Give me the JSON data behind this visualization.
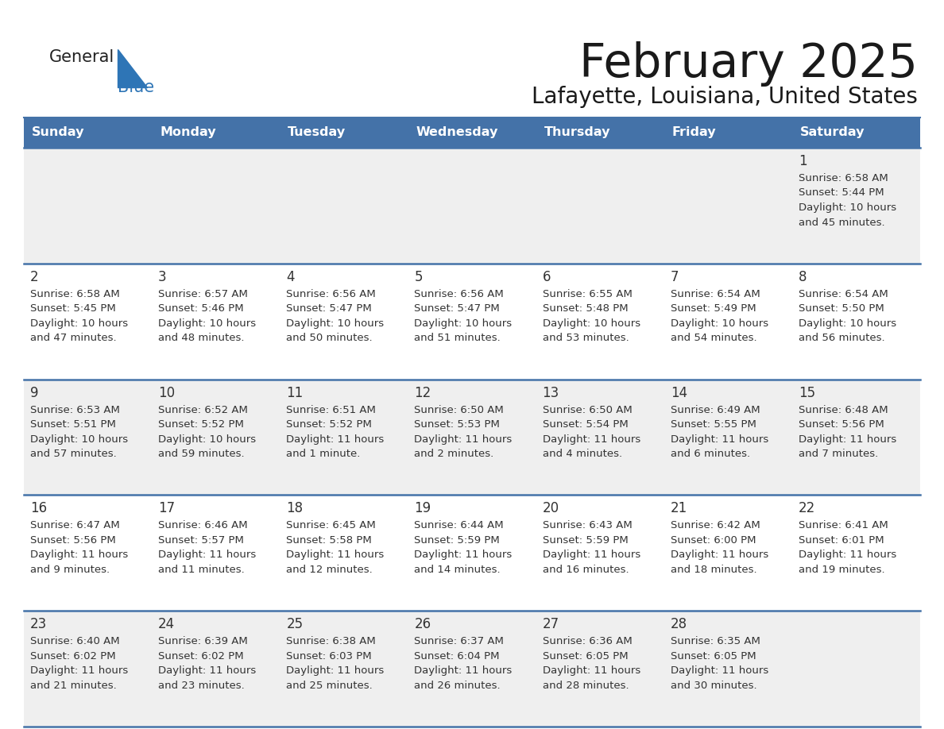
{
  "title": "February 2025",
  "subtitle": "Lafayette, Louisiana, United States",
  "header_color": "#4472A8",
  "header_text_color": "#FFFFFF",
  "day_headers": [
    "Sunday",
    "Monday",
    "Tuesday",
    "Wednesday",
    "Thursday",
    "Friday",
    "Saturday"
  ],
  "background_color": "#FFFFFF",
  "cell_bg_row0": "#EFEFEF",
  "cell_bg_row1": "#FFFFFF",
  "cell_bg_row2": "#EFEFEF",
  "cell_bg_row3": "#FFFFFF",
  "cell_bg_row4": "#EFEFEF",
  "row_line_color": "#4472A8",
  "text_color": "#333333",
  "day_num_color": "#333333",
  "logo_color1": "#222222",
  "logo_color2": "#2E75B6",
  "logo_triangle_color": "#2E75B6",
  "calendar_data": [
    [
      {
        "day": null,
        "sunrise": null,
        "sunset": null,
        "daylight": null
      },
      {
        "day": null,
        "sunrise": null,
        "sunset": null,
        "daylight": null
      },
      {
        "day": null,
        "sunrise": null,
        "sunset": null,
        "daylight": null
      },
      {
        "day": null,
        "sunrise": null,
        "sunset": null,
        "daylight": null
      },
      {
        "day": null,
        "sunrise": null,
        "sunset": null,
        "daylight": null
      },
      {
        "day": null,
        "sunrise": null,
        "sunset": null,
        "daylight": null
      },
      {
        "day": 1,
        "sunrise": "6:58 AM",
        "sunset": "5:44 PM",
        "daylight": "10 hours\nand 45 minutes."
      }
    ],
    [
      {
        "day": 2,
        "sunrise": "6:58 AM",
        "sunset": "5:45 PM",
        "daylight": "10 hours\nand 47 minutes."
      },
      {
        "day": 3,
        "sunrise": "6:57 AM",
        "sunset": "5:46 PM",
        "daylight": "10 hours\nand 48 minutes."
      },
      {
        "day": 4,
        "sunrise": "6:56 AM",
        "sunset": "5:47 PM",
        "daylight": "10 hours\nand 50 minutes."
      },
      {
        "day": 5,
        "sunrise": "6:56 AM",
        "sunset": "5:47 PM",
        "daylight": "10 hours\nand 51 minutes."
      },
      {
        "day": 6,
        "sunrise": "6:55 AM",
        "sunset": "5:48 PM",
        "daylight": "10 hours\nand 53 minutes."
      },
      {
        "day": 7,
        "sunrise": "6:54 AM",
        "sunset": "5:49 PM",
        "daylight": "10 hours\nand 54 minutes."
      },
      {
        "day": 8,
        "sunrise": "6:54 AM",
        "sunset": "5:50 PM",
        "daylight": "10 hours\nand 56 minutes."
      }
    ],
    [
      {
        "day": 9,
        "sunrise": "6:53 AM",
        "sunset": "5:51 PM",
        "daylight": "10 hours\nand 57 minutes."
      },
      {
        "day": 10,
        "sunrise": "6:52 AM",
        "sunset": "5:52 PM",
        "daylight": "10 hours\nand 59 minutes."
      },
      {
        "day": 11,
        "sunrise": "6:51 AM",
        "sunset": "5:52 PM",
        "daylight": "11 hours\nand 1 minute."
      },
      {
        "day": 12,
        "sunrise": "6:50 AM",
        "sunset": "5:53 PM",
        "daylight": "11 hours\nand 2 minutes."
      },
      {
        "day": 13,
        "sunrise": "6:50 AM",
        "sunset": "5:54 PM",
        "daylight": "11 hours\nand 4 minutes."
      },
      {
        "day": 14,
        "sunrise": "6:49 AM",
        "sunset": "5:55 PM",
        "daylight": "11 hours\nand 6 minutes."
      },
      {
        "day": 15,
        "sunrise": "6:48 AM",
        "sunset": "5:56 PM",
        "daylight": "11 hours\nand 7 minutes."
      }
    ],
    [
      {
        "day": 16,
        "sunrise": "6:47 AM",
        "sunset": "5:56 PM",
        "daylight": "11 hours\nand 9 minutes."
      },
      {
        "day": 17,
        "sunrise": "6:46 AM",
        "sunset": "5:57 PM",
        "daylight": "11 hours\nand 11 minutes."
      },
      {
        "day": 18,
        "sunrise": "6:45 AM",
        "sunset": "5:58 PM",
        "daylight": "11 hours\nand 12 minutes."
      },
      {
        "day": 19,
        "sunrise": "6:44 AM",
        "sunset": "5:59 PM",
        "daylight": "11 hours\nand 14 minutes."
      },
      {
        "day": 20,
        "sunrise": "6:43 AM",
        "sunset": "5:59 PM",
        "daylight": "11 hours\nand 16 minutes."
      },
      {
        "day": 21,
        "sunrise": "6:42 AM",
        "sunset": "6:00 PM",
        "daylight": "11 hours\nand 18 minutes."
      },
      {
        "day": 22,
        "sunrise": "6:41 AM",
        "sunset": "6:01 PM",
        "daylight": "11 hours\nand 19 minutes."
      }
    ],
    [
      {
        "day": 23,
        "sunrise": "6:40 AM",
        "sunset": "6:02 PM",
        "daylight": "11 hours\nand 21 minutes."
      },
      {
        "day": 24,
        "sunrise": "6:39 AM",
        "sunset": "6:02 PM",
        "daylight": "11 hours\nand 23 minutes."
      },
      {
        "day": 25,
        "sunrise": "6:38 AM",
        "sunset": "6:03 PM",
        "daylight": "11 hours\nand 25 minutes."
      },
      {
        "day": 26,
        "sunrise": "6:37 AM",
        "sunset": "6:04 PM",
        "daylight": "11 hours\nand 26 minutes."
      },
      {
        "day": 27,
        "sunrise": "6:36 AM",
        "sunset": "6:05 PM",
        "daylight": "11 hours\nand 28 minutes."
      },
      {
        "day": 28,
        "sunrise": "6:35 AM",
        "sunset": "6:05 PM",
        "daylight": "11 hours\nand 30 minutes."
      },
      {
        "day": null,
        "sunrise": null,
        "sunset": null,
        "daylight": null
      }
    ]
  ]
}
